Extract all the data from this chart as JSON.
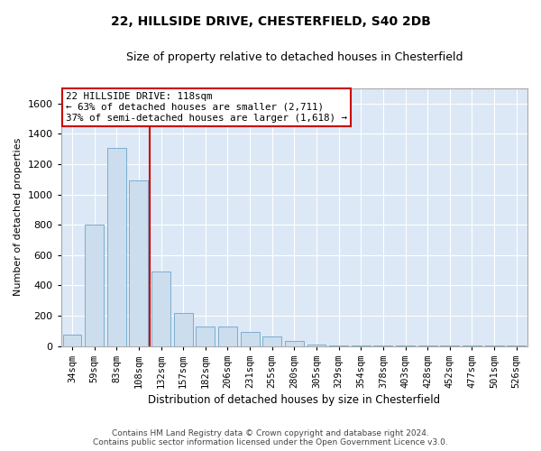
{
  "title1": "22, HILLSIDE DRIVE, CHESTERFIELD, S40 2DB",
  "title2": "Size of property relative to detached houses in Chesterfield",
  "xlabel": "Distribution of detached houses by size in Chesterfield",
  "ylabel": "Number of detached properties",
  "footer1": "Contains HM Land Registry data © Crown copyright and database right 2024.",
  "footer2": "Contains public sector information licensed under the Open Government Licence v3.0.",
  "annotation_line1": "22 HILLSIDE DRIVE: 118sqm",
  "annotation_line2": "← 63% of detached houses are smaller (2,711)",
  "annotation_line3": "37% of semi-detached houses are larger (1,618) →",
  "bar_color": "#ccdded",
  "bar_edge_color": "#7aaed0",
  "vline_color": "#cc0000",
  "categories": [
    "34sqm",
    "59sqm",
    "83sqm",
    "108sqm",
    "132sqm",
    "157sqm",
    "182sqm",
    "206sqm",
    "231sqm",
    "255sqm",
    "280sqm",
    "305sqm",
    "329sqm",
    "354sqm",
    "378sqm",
    "403sqm",
    "428sqm",
    "452sqm",
    "477sqm",
    "501sqm",
    "526sqm"
  ],
  "values": [
    75,
    800,
    1310,
    1090,
    490,
    215,
    130,
    130,
    95,
    60,
    30,
    8,
    5,
    2,
    2,
    2,
    2,
    2,
    5,
    2,
    5
  ],
  "ylim": [
    0,
    1700
  ],
  "yticks": [
    0,
    200,
    400,
    600,
    800,
    1000,
    1200,
    1400,
    1600
  ],
  "fig_bg_color": "#ffffff",
  "plot_bg_color": "#dce8f5",
  "grid_color": "#ffffff",
  "annotation_box_edge": "#cc0000",
  "title1_fontsize": 10,
  "title2_fontsize": 9
}
